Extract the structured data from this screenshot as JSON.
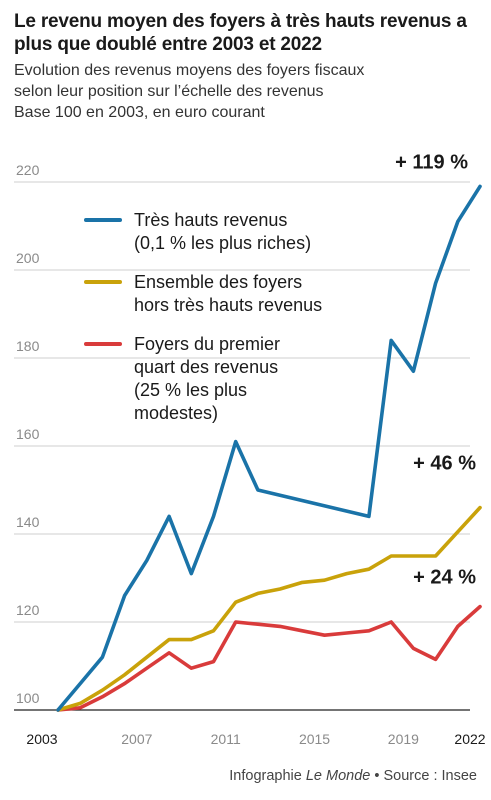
{
  "title": "Le revenu moyen des foyers à très hauts revenus a plus que doublé entre 2003 et 2022",
  "subtitle": {
    "line1": "Evolution des revenus moyens des foyers fiscaux",
    "line2": "selon leur position sur l’échelle des revenus",
    "line3": "Base 100 en 2003, en euro courant"
  },
  "footer": {
    "prefix": "Infographie ",
    "outlet": "Le Monde",
    "separator": " • ",
    "source": "Source : Insee"
  },
  "chart_data": {
    "type": "line",
    "ylim": [
      100,
      220
    ],
    "xlim": [
      2003,
      2022
    ],
    "grid": true,
    "legend_position": "top-left",
    "yticks": [
      100,
      120,
      140,
      160,
      180,
      200,
      220
    ],
    "xticks": [
      {
        "value": 2003,
        "label": "2003",
        "bold": true
      },
      {
        "value": 2007,
        "label": "2007",
        "bold": false
      },
      {
        "value": 2011,
        "label": "2011",
        "bold": false
      },
      {
        "value": 2015,
        "label": "2015",
        "bold": false
      },
      {
        "value": 2019,
        "label": "2019",
        "bold": false
      },
      {
        "value": 2022,
        "label": "2022",
        "bold": true
      }
    ],
    "series": [
      {
        "name_lines": [
          "Très hauts revenus",
          "(0,1 % les plus riches)"
        ],
        "color": "#1a73a8",
        "end_label": "+ 119 %",
        "x": [
          2003,
          2004,
          2005,
          2006,
          2007,
          2008,
          2009,
          2010,
          2011,
          2012,
          2017,
          2018,
          2019,
          2020,
          2021,
          2022
        ],
        "values": [
          100,
          106,
          112,
          126,
          134,
          144,
          131,
          144,
          161,
          150,
          144,
          184,
          177,
          197,
          211,
          219
        ]
      },
      {
        "name_lines": [
          "Ensemble des foyers",
          "hors très hauts revenus"
        ],
        "color": "#c9a20a",
        "end_label": "+ 46 %",
        "x": [
          2003,
          2004,
          2005,
          2006,
          2007,
          2008,
          2009,
          2010,
          2011,
          2012,
          2013,
          2014,
          2015,
          2016,
          2017,
          2018,
          2019,
          2020,
          2021,
          2022
        ],
        "values": [
          100,
          101.5,
          104.5,
          108,
          112,
          116,
          116,
          118,
          124.5,
          126.5,
          127.5,
          129,
          129.5,
          131,
          132,
          135,
          135,
          135,
          140.5,
          146
        ]
      },
      {
        "name_lines": [
          "Foyers du premier",
          "quart des revenus",
          "(25 % les plus",
          "modestes)"
        ],
        "color": "#d93b3b",
        "end_label": "+ 24 %",
        "x": [
          2003,
          2004,
          2005,
          2006,
          2007,
          2008,
          2009,
          2010,
          2011,
          2012,
          2013,
          2014,
          2015,
          2016,
          2017,
          2018,
          2019,
          2020,
          2021,
          2022
        ],
        "values": [
          100,
          100.5,
          103,
          106,
          109.5,
          113,
          109.5,
          111,
          120,
          119.5,
          119,
          118,
          117,
          117.5,
          118,
          120,
          114,
          111.5,
          119,
          123.5
        ]
      }
    ]
  }
}
